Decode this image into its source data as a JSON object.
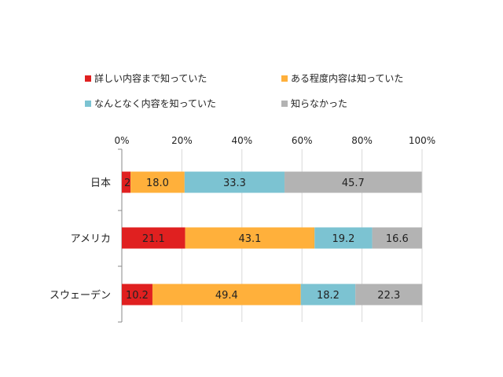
{
  "chart_data": {
    "type": "bar",
    "orientation": "horizontal",
    "stacked": true,
    "percent_stacked": true,
    "categories": [
      "日本",
      "アメリカ",
      "スウェーデン"
    ],
    "series": [
      {
        "name": "詳しい内容まで知っていた",
        "values": [
          2.9,
          21.1,
          10.2
        ],
        "color": "#e02020"
      },
      {
        "name": "ある程度内容は知っていた",
        "values": [
          18.0,
          43.1,
          49.4
        ],
        "color": "#ffb03b"
      },
      {
        "name": "なんとなく内容を知っていた",
        "values": [
          33.3,
          19.2,
          18.2
        ],
        "color": "#7cc3d2"
      },
      {
        "name": "知らなかった",
        "values": [
          45.7,
          16.6,
          22.3
        ],
        "color": "#b3b3b3"
      }
    ],
    "xticks": [
      "0%",
      "20%",
      "40%",
      "60%",
      "80%",
      "100%"
    ],
    "xlim": [
      0,
      100
    ],
    "grid": true,
    "legend_position": "top"
  }
}
